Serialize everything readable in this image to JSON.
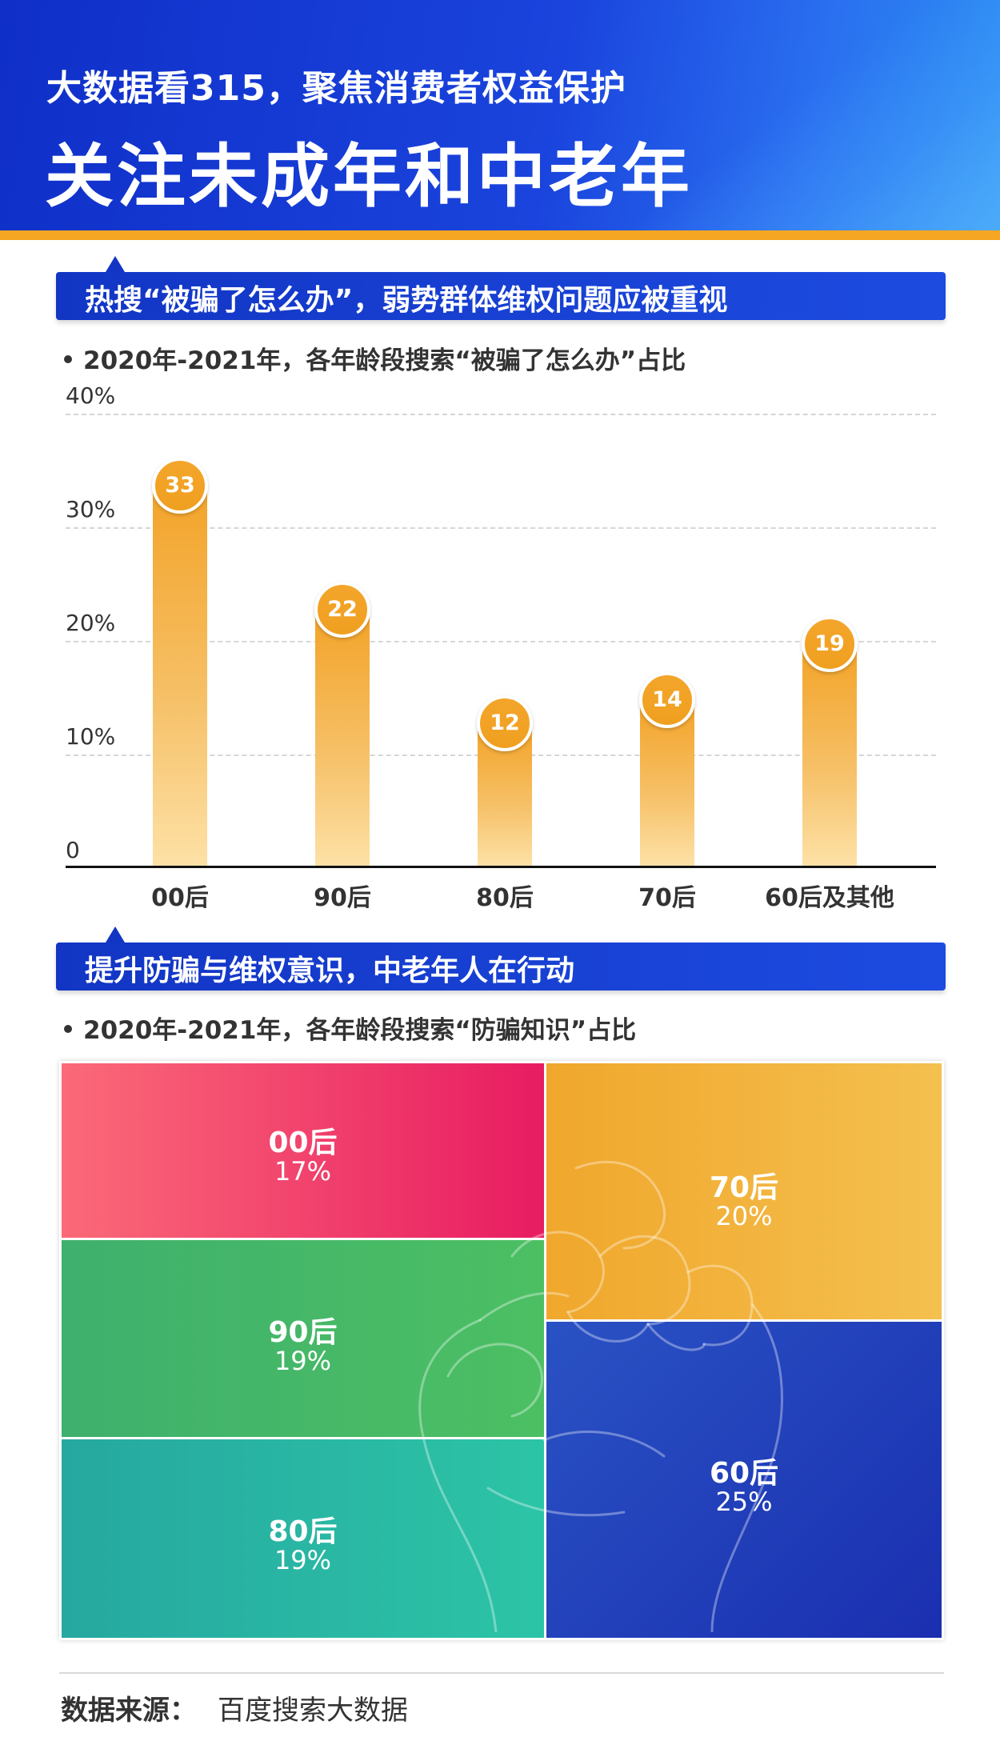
{
  "header": {
    "subtitle": "大数据看315，聚焦消费者权益保护",
    "title": "关注未成年和中老年"
  },
  "section1": {
    "heading": "热搜“被骗了怎么办”，弱势群体维权问题应被重视",
    "note": "2020年-2021年，各年龄段搜索“被骗了怎么办”占比"
  },
  "section2": {
    "heading": "提升防骗与维权意识，中老年人在行动",
    "note": "2020年-2021年，各年龄段搜索“防骗知识”占比"
  },
  "source": {
    "label": "数据来源：",
    "value": "百度搜索大数据"
  },
  "colors": {
    "header_blue": "#1a44dd",
    "accent_orange": "#f5a623",
    "bar_orange": "#f3a42a"
  },
  "chart_data": [
    {
      "type": "bar",
      "categories": [
        "00后",
        "90后",
        "80后",
        "70后",
        "60后及其他"
      ],
      "values": [
        33,
        22,
        12,
        14,
        19
      ],
      "data_labels": [
        "33",
        "22",
        "12",
        "14",
        "19"
      ],
      "yticks": [
        "0",
        "10%",
        "20%",
        "30%",
        "40%"
      ],
      "ylim": [
        0,
        40
      ],
      "grid": true
    },
    {
      "type": "treemap",
      "items": [
        {
          "name": "00后",
          "pct": "17%",
          "value": 17
        },
        {
          "name": "90后",
          "pct": "19%",
          "value": 19
        },
        {
          "name": "80后",
          "pct": "19%",
          "value": 19
        },
        {
          "name": "70后",
          "pct": "20%",
          "value": 20
        },
        {
          "name": "60后",
          "pct": "25%",
          "value": 25
        }
      ]
    }
  ]
}
